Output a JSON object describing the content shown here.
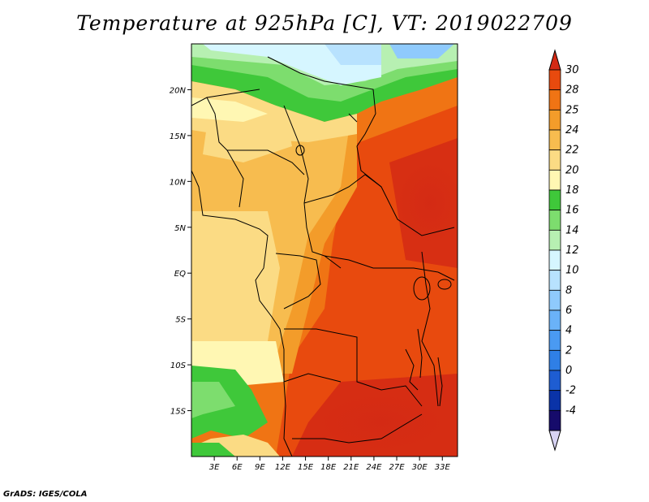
{
  "title": "Temperature at 925hPa [C], VT: 2019022709",
  "footer": "GrADS: IGES/COLA",
  "map": {
    "region": "Central and Southern Africa",
    "lon_range": [
      0,
      35
    ],
    "lat_range": [
      -20,
      25
    ],
    "lat_ticks": [
      {
        "value": 20,
        "label": "20N"
      },
      {
        "value": 15,
        "label": "15N"
      },
      {
        "value": 10,
        "label": "10N"
      },
      {
        "value": 5,
        "label": "5N"
      },
      {
        "value": 0,
        "label": "EQ"
      },
      {
        "value": -5,
        "label": "5S"
      },
      {
        "value": -10,
        "label": "10S"
      },
      {
        "value": -15,
        "label": "15S"
      }
    ],
    "lon_ticks": [
      {
        "value": 3,
        "label": "3E"
      },
      {
        "value": 6,
        "label": "6E"
      },
      {
        "value": 9,
        "label": "9E"
      },
      {
        "value": 12,
        "label": "12E"
      },
      {
        "value": 15,
        "label": "15E"
      },
      {
        "value": 18,
        "label": "18E"
      },
      {
        "value": 21,
        "label": "21E"
      },
      {
        "value": 24,
        "label": "24E"
      },
      {
        "value": 27,
        "label": "27E"
      },
      {
        "value": 30,
        "label": "30E"
      },
      {
        "value": 33,
        "label": "33E"
      }
    ]
  },
  "colorbar": {
    "levels": [
      {
        "label": "-4",
        "color": "#160b6b"
      },
      {
        "label": "-2",
        "color": "#0a33a8"
      },
      {
        "label": "0",
        "color": "#1e5dd2"
      },
      {
        "label": "2",
        "color": "#2f7fe6"
      },
      {
        "label": "4",
        "color": "#4a9af2"
      },
      {
        "label": "6",
        "color": "#6ab2f8"
      },
      {
        "label": "8",
        "color": "#8fcafc"
      },
      {
        "label": "10",
        "color": "#b8e2fe"
      },
      {
        "label": "12",
        "color": "#d6f6ff"
      },
      {
        "label": "14",
        "color": "#b7f0b2"
      },
      {
        "label": "16",
        "color": "#7ddd6e"
      },
      {
        "label": "18",
        "color": "#3fc83a"
      },
      {
        "label": "20",
        "color": "#fff7b3"
      },
      {
        "label": "22",
        "color": "#fbdb84"
      },
      {
        "label": "24",
        "color": "#f7bc4f"
      },
      {
        "label": "25",
        "color": "#f39c2a"
      },
      {
        "label": "28",
        "color": "#f07414"
      },
      {
        "label": "30",
        "color": "#e84a0e"
      }
    ],
    "below_color": "#d7d3f3",
    "above_color": "#d42a14"
  }
}
